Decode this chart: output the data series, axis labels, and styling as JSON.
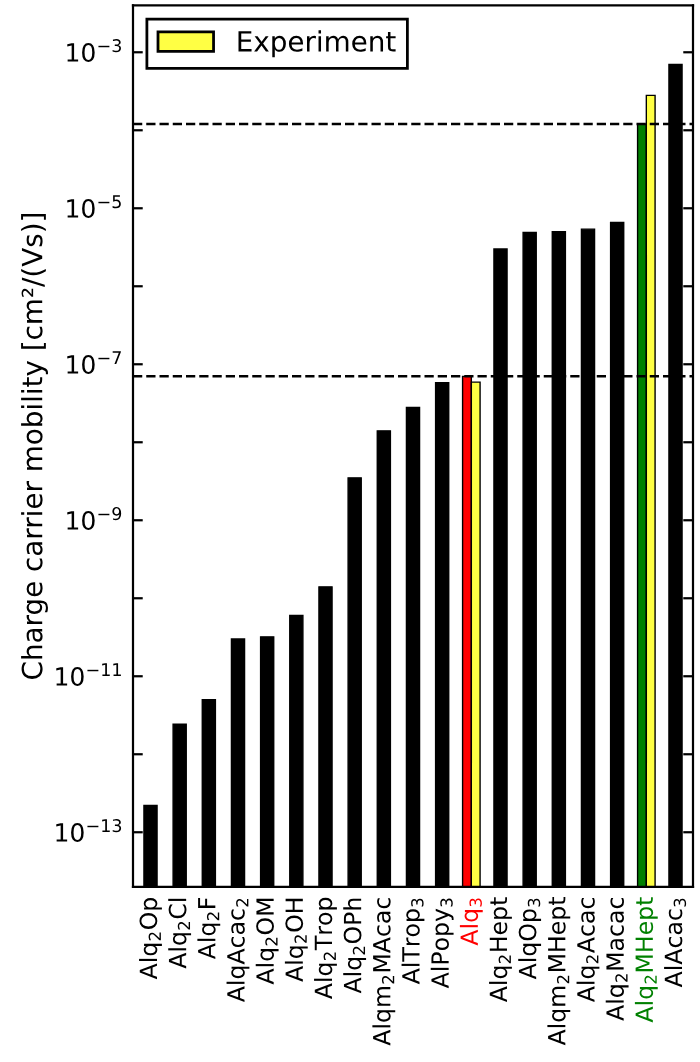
{
  "chart_data": {
    "type": "bar",
    "ylabel": "Charge carrier mobility [cm²/(Vs)]",
    "categories": [
      "Alq$_{2}$Op",
      "Alq$_{2}$Cl",
      "Alq$_{2}$F",
      "AlqAcac$_{2}$",
      "Alq$_{2}$OM",
      "Alq$_{2}$OH",
      "Alq$_{2}$Trop",
      "Alq$_{2}$OPh",
      "Alqm$_{2}$MAcac",
      "AlTrop$_{3}$",
      "AlPopy$_{3}$",
      "Alq$_{3}$",
      "Alq$_{2}$Hept",
      "AlqOp$_{3}$",
      "Alqm$_{2}$MHept",
      "Alq$_{2}$Acac",
      "Alq$_{2}$Macac",
      "Alq$_{2}$MHept",
      "AlAcac$_{3}$"
    ],
    "series": [
      {
        "color": "#000000",
        "colors": [
          "#000000",
          "#000000",
          "#000000",
          "#000000",
          "#000000",
          "#000000",
          "#000000",
          "#000000",
          "#000000",
          "#000000",
          "#000000",
          "#ff0000",
          "#000000",
          "#000000",
          "#000000",
          "#000000",
          "#000000",
          "#008000",
          "#000000"
        ],
        "values": [
          2e-13,
          2.4e-12,
          5e-12,
          3e-11,
          3.2e-11,
          6e-11,
          1.4e-10,
          3.5e-09,
          1.4e-08,
          2.8e-08,
          5.8e-08,
          7e-08,
          3e-06,
          4.9e-06,
          5e-06,
          5.4e-06,
          6.6e-06,
          0.00012,
          0.0007
        ]
      },
      {
        "name": "Experiment",
        "color": "#ffff44",
        "values": [
          null,
          null,
          null,
          null,
          null,
          null,
          null,
          null,
          null,
          null,
          null,
          5.9e-08,
          null,
          null,
          null,
          null,
          null,
          0.00028,
          null
        ]
      }
    ],
    "log": true,
    "ylim": [
      2e-14,
      0.004
    ],
    "yticks": [
      {
        "value": 1e-13,
        "label": "10$^{−13}$"
      },
      {
        "value": 1e-12,
        "label": null
      },
      {
        "value": 1e-11,
        "label": "10$^{−11}$"
      },
      {
        "value": 1e-10,
        "label": null
      },
      {
        "value": 1e-09,
        "label": "10$^{−9}$"
      },
      {
        "value": 1e-08,
        "label": null
      },
      {
        "value": 1e-07,
        "label": "10$^{−7}$"
      },
      {
        "value": 1e-06,
        "label": null
      },
      {
        "value": 1e-05,
        "label": "10$^{−5}$"
      },
      {
        "value": 0.0001,
        "label": null
      },
      {
        "value": 0.001,
        "label": "10$^{−3}$"
      }
    ],
    "ref_lines": [
      {
        "axis": "y",
        "value": 7e-08,
        "line_style": "dashed",
        "color": "#000000"
      },
      {
        "axis": "y",
        "value": 0.00012,
        "line_style": "dashed",
        "color": "#000000"
      }
    ],
    "grid": false,
    "legend": "top left"
  }
}
